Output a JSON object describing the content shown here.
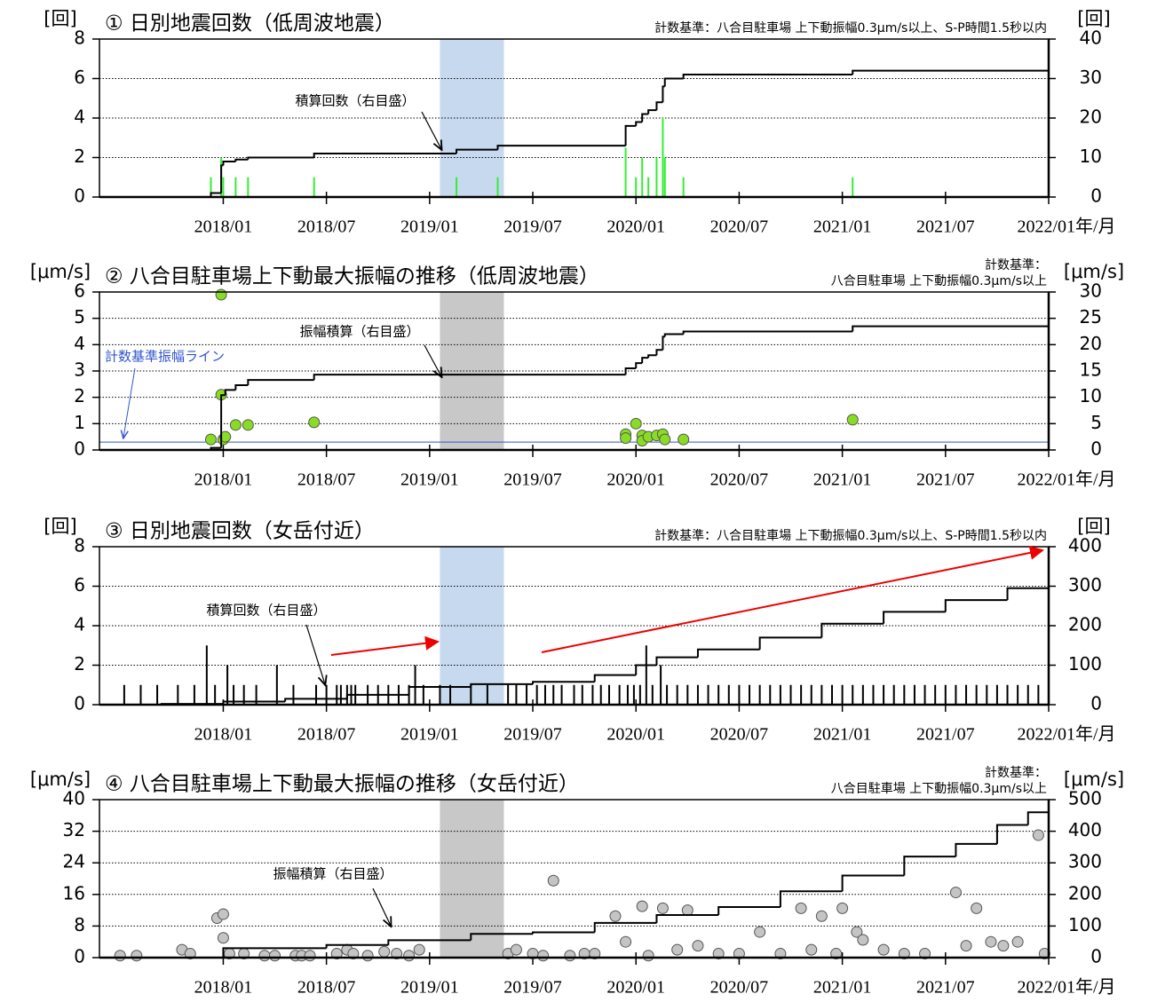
{
  "chart_data": [
    {
      "type": "bar",
      "title": "① 日別地震回数（低周波地震）",
      "note": [
        "計数基準：八合目駐車場 上下動振幅0.3μm/s以上、S-P時間1.5秒以内"
      ],
      "y_label": "[回]",
      "y2_label": "[回]",
      "x_label": "年/月",
      "xlim": [
        2017.4,
        2022.0
      ],
      "xticks": [
        {
          "value": 2018.0,
          "label": "2018/01"
        },
        {
          "value": 2018.5,
          "label": "2018/07"
        },
        {
          "value": 2019.0,
          "label": "2019/01"
        },
        {
          "value": 2019.5,
          "label": "2019/07"
        },
        {
          "value": 2020.0,
          "label": "2020/01"
        },
        {
          "value": 2020.5,
          "label": "2020/07"
        },
        {
          "value": 2021.0,
          "label": "2021/01"
        },
        {
          "value": 2021.5,
          "label": "2021/07"
        },
        {
          "value": 2022.0,
          "label": "2022/01"
        }
      ],
      "ylim": [
        0,
        8
      ],
      "yticks": [
        0,
        2,
        4,
        6,
        8
      ],
      "y2lim": [
        0,
        40
      ],
      "y2ticks": [
        0,
        10,
        20,
        30,
        40
      ],
      "grid": true,
      "shade": {
        "xlim": [
          2019.05,
          2019.36
        ],
        "color": "#c6d9ef"
      },
      "series": [
        {
          "color": "#33ee33",
          "x": [
            2017.94,
            2017.99,
            2018.0,
            2018.06,
            2018.12,
            2018.44,
            2019.13,
            2019.33,
            2019.95,
            2020.0,
            2020.03,
            2020.06,
            2020.1,
            2020.13,
            2020.14,
            2020.23,
            2021.05
          ],
          "values": [
            1,
            2,
            1,
            1,
            1,
            1,
            1,
            1,
            2.5,
            1,
            2,
            1,
            2,
            4,
            2,
            1,
            1
          ]
        },
        {
          "type": "line",
          "axis": "y2",
          "color": "#000000",
          "annotation": "積算回数（右目盛）",
          "x": [
            2017.4,
            2017.94,
            2017.99,
            2018.0,
            2018.06,
            2018.12,
            2018.44,
            2019.13,
            2019.33,
            2019.95,
            2020.0,
            2020.03,
            2020.06,
            2020.1,
            2020.13,
            2020.14,
            2020.23,
            2021.05,
            2022.0
          ],
          "values": [
            0,
            1,
            8,
            9,
            9.5,
            10,
            11,
            12,
            13,
            18,
            19,
            21,
            22,
            24,
            28,
            30,
            31,
            32,
            32
          ]
        }
      ]
    },
    {
      "type": "scatter",
      "title": "② 八合目駐車場上下動最大振幅の推移（低周波地震）",
      "note": [
        "計数基準：",
        "八合目駐車場 上下動振幅0.3μm/s以上"
      ],
      "y_label": "[μm/s]",
      "y2_label": "[μm/s]",
      "x_label": "年/月",
      "xlim": [
        2017.4,
        2022.0
      ],
      "xticks": [
        {
          "value": 2018.0,
          "label": "2018/01"
        },
        {
          "value": 2018.5,
          "label": "2018/07"
        },
        {
          "value": 2019.0,
          "label": "2019/01"
        },
        {
          "value": 2019.5,
          "label": "2019/07"
        },
        {
          "value": 2020.0,
          "label": "2020/01"
        },
        {
          "value": 2020.5,
          "label": "2020/07"
        },
        {
          "value": 2021.0,
          "label": "2021/01"
        },
        {
          "value": 2021.5,
          "label": "2021/07"
        },
        {
          "value": 2022.0,
          "label": "2022/01"
        }
      ],
      "ylim": [
        0,
        6
      ],
      "yticks": [
        0,
        1,
        2,
        3,
        4,
        5,
        6
      ],
      "y2lim": [
        0,
        30
      ],
      "y2ticks": [
        0,
        5,
        10,
        15,
        20,
        25,
        30
      ],
      "grid": true,
      "shade": {
        "xlim": [
          2019.05,
          2019.36
        ],
        "color": "#c8c8c8"
      },
      "reference_line": {
        "value": 0.3,
        "color": "#3355cc",
        "label": "計数基準振幅ライン"
      },
      "series": [
        {
          "color": "#88dd22",
          "x": [
            2017.94,
            2017.99,
            2017.99,
            2018.0,
            2018.01,
            2018.06,
            2018.12,
            2018.44,
            2019.95,
            2019.95,
            2020.0,
            2020.03,
            2020.03,
            2020.06,
            2020.1,
            2020.13,
            2020.14,
            2020.23,
            2021.05
          ],
          "values": [
            0.4,
            5.9,
            2.1,
            0.4,
            0.5,
            0.95,
            0.95,
            1.05,
            0.6,
            0.45,
            1.0,
            0.55,
            0.35,
            0.5,
            0.55,
            0.6,
            0.4,
            0.4,
            1.15
          ]
        },
        {
          "type": "line",
          "axis": "y2",
          "color": "#000000",
          "annotation": "振幅積算（右目盛）",
          "x": [
            2017.4,
            2017.94,
            2017.99,
            2018.01,
            2018.06,
            2018.12,
            2018.44,
            2019.95,
            2020.0,
            2020.03,
            2020.06,
            2020.1,
            2020.13,
            2020.14,
            2020.23,
            2021.05,
            2022.0
          ],
          "values": [
            0,
            0.4,
            10.4,
            11.4,
            12.3,
            13.3,
            14.3,
            15.5,
            16.5,
            17.5,
            18,
            19,
            21.5,
            22,
            22.5,
            23.5,
            23.5
          ]
        }
      ]
    },
    {
      "type": "bar",
      "title": "③ 日別地震回数（女岳付近）",
      "note": [
        "計数基準：八合目駐車場 上下動振幅0.3μm/s以上、S-P時間1.5秒以内"
      ],
      "y_label": "[回]",
      "y2_label": "[回]",
      "x_label": "年/月",
      "xlim": [
        2017.4,
        2022.0
      ],
      "xticks": [
        {
          "value": 2018.0,
          "label": "2018/01"
        },
        {
          "value": 2018.5,
          "label": "2018/07"
        },
        {
          "value": 2019.0,
          "label": "2019/01"
        },
        {
          "value": 2019.5,
          "label": "2019/07"
        },
        {
          "value": 2020.0,
          "label": "2020/01"
        },
        {
          "value": 2020.5,
          "label": "2020/07"
        },
        {
          "value": 2021.0,
          "label": "2021/01"
        },
        {
          "value": 2021.5,
          "label": "2021/07"
        },
        {
          "value": 2022.0,
          "label": "2022/01"
        }
      ],
      "ylim": [
        0,
        8
      ],
      "yticks": [
        0,
        2,
        4,
        6,
        8
      ],
      "y2lim": [
        0,
        400
      ],
      "y2ticks": [
        0,
        100,
        200,
        300,
        400
      ],
      "grid": true,
      "shade": {
        "xlim": [
          2019.05,
          2019.36
        ],
        "color": "#c6d9ef"
      },
      "series": [
        {
          "color": "#000000",
          "x": [
            2017.52,
            2017.6,
            2017.68,
            2017.78,
            2017.86,
            2017.92,
            2017.96,
            2018.02,
            2018.05,
            2018.1,
            2018.16,
            2018.26,
            2018.34,
            2018.45,
            2018.5,
            2018.55,
            2018.57,
            2018.6,
            2018.62,
            2018.64,
            2018.7,
            2018.75,
            2018.8,
            2018.85,
            2018.9,
            2018.93,
            2018.97,
            2019.05,
            2019.1,
            2019.2,
            2019.28,
            2019.38,
            2019.42,
            2019.47,
            2019.52,
            2019.56,
            2019.6,
            2019.64,
            2019.7,
            2019.74,
            2019.79,
            2019.83,
            2019.87,
            2019.92,
            2019.96,
            2019.99,
            2020.02,
            2020.05,
            2020.08,
            2020.12,
            2020.15,
            2020.2,
            2020.25,
            2020.3,
            2020.35,
            2020.4,
            2020.45,
            2020.5,
            2020.55,
            2020.6,
            2020.65,
            2020.7,
            2020.75,
            2020.8,
            2020.85,
            2020.9,
            2020.95,
            2021.0,
            2021.05,
            2021.1,
            2021.15,
            2021.2,
            2021.25,
            2021.3,
            2021.35,
            2021.4,
            2021.45,
            2021.5,
            2021.55,
            2021.6,
            2021.65,
            2021.7,
            2021.75,
            2021.8,
            2021.85,
            2021.9,
            2021.95
          ],
          "values": [
            1,
            1,
            1,
            1,
            1,
            3,
            1,
            2,
            1,
            1,
            1,
            2,
            1,
            1,
            1,
            1,
            1,
            1,
            1,
            1,
            1,
            1,
            1,
            1,
            1,
            2,
            1,
            1,
            1,
            1,
            1,
            1,
            1,
            1,
            1,
            1,
            1,
            1,
            1,
            1,
            1,
            1,
            1,
            1,
            1,
            1,
            1,
            3,
            1,
            2,
            1,
            1,
            1,
            1,
            1,
            1,
            1,
            1,
            1,
            1,
            1,
            1,
            1,
            1,
            1,
            1,
            1,
            1,
            1,
            1,
            1,
            1,
            1,
            1,
            1,
            1,
            1,
            1,
            1,
            1,
            1,
            1,
            1,
            1,
            1,
            1,
            1
          ]
        },
        {
          "type": "line",
          "axis": "y2",
          "color": "#000000",
          "annotation": "積算回数（右目盛）",
          "x": [
            2017.4,
            2017.7,
            2018.0,
            2018.3,
            2018.6,
            2018.9,
            2019.2,
            2019.5,
            2019.8,
            2020.0,
            2020.1,
            2020.3,
            2020.6,
            2020.9,
            2021.2,
            2021.5,
            2021.8,
            2022.0
          ],
          "values": [
            0,
            2,
            8,
            15,
            25,
            45,
            52,
            58,
            75,
            100,
            120,
            140,
            170,
            205,
            235,
            265,
            295,
            312
          ]
        }
      ]
    },
    {
      "type": "scatter",
      "title": "④ 八合目駐車場上下動最大振幅の推移（女岳付近）",
      "note": [
        "計数基準：",
        "八合目駐車場 上下動振幅0.3μm/s以上"
      ],
      "y_label": "[μm/s]",
      "y2_label": "[μm/s]",
      "x_label": "年/月",
      "xlim": [
        2017.4,
        2022.0
      ],
      "xticks": [
        {
          "value": 2018.0,
          "label": "2018/01"
        },
        {
          "value": 2018.5,
          "label": "2018/07"
        },
        {
          "value": 2019.0,
          "label": "2019/01"
        },
        {
          "value": 2019.5,
          "label": "2019/07"
        },
        {
          "value": 2020.0,
          "label": "2020/01"
        },
        {
          "value": 2020.5,
          "label": "2020/07"
        },
        {
          "value": 2021.0,
          "label": "2021/01"
        },
        {
          "value": 2021.5,
          "label": "2021/07"
        },
        {
          "value": 2022.0,
          "label": "2022/01"
        }
      ],
      "ylim": [
        0,
        40
      ],
      "yticks": [
        0,
        8,
        16,
        24,
        32,
        40
      ],
      "y2lim": [
        0,
        500
      ],
      "y2ticks": [
        0,
        100,
        200,
        300,
        400,
        500
      ],
      "grid": true,
      "shade": {
        "xlim": [
          2019.05,
          2019.36
        ],
        "color": "#c8c8c8"
      },
      "series": [
        {
          "color": "#c4c4c4",
          "x": [
            2017.5,
            2017.58,
            2017.8,
            2017.84,
            2017.97,
            2018.0,
            2018.0,
            2018.03,
            2018.1,
            2018.2,
            2018.25,
            2018.35,
            2018.38,
            2018.42,
            2018.55,
            2018.6,
            2018.63,
            2018.7,
            2018.78,
            2018.84,
            2018.9,
            2018.95,
            2019.38,
            2019.42,
            2019.5,
            2019.55,
            2019.6,
            2019.68,
            2019.75,
            2019.8,
            2019.9,
            2019.95,
            2020.03,
            2020.06,
            2020.13,
            2020.2,
            2020.25,
            2020.3,
            2020.4,
            2020.5,
            2020.6,
            2020.7,
            2020.8,
            2020.85,
            2020.9,
            2020.97,
            2021.0,
            2021.07,
            2021.1,
            2021.2,
            2021.3,
            2021.4,
            2021.55,
            2021.6,
            2021.65,
            2021.72,
            2021.78,
            2021.85,
            2021.95,
            2021.98
          ],
          "values": [
            0.5,
            0.5,
            2,
            1,
            10,
            11,
            5,
            1,
            1,
            0.5,
            0.5,
            0.5,
            0.5,
            0.5,
            1,
            2,
            1,
            0.5,
            1.5,
            1,
            0.5,
            2,
            1,
            2,
            1,
            0.5,
            19.5,
            0.5,
            1,
            1,
            10.5,
            4,
            13,
            0.5,
            12.5,
            2,
            12,
            3,
            1,
            1,
            6.5,
            1,
            12.5,
            2,
            10.5,
            1,
            12.5,
            6.5,
            4.5,
            2,
            1,
            1,
            16.5,
            3,
            12.5,
            4,
            3,
            4,
            31,
            1
          ]
        },
        {
          "type": "line",
          "axis": "y2",
          "color": "#000000",
          "annotation": "振幅積算（右目盛）",
          "x": [
            2017.4,
            2017.95,
            2018.0,
            2018.5,
            2018.8,
            2019.2,
            2019.5,
            2019.8,
            2020.1,
            2020.4,
            2020.7,
            2021.0,
            2021.3,
            2021.55,
            2021.75,
            2021.9,
            2022.0
          ],
          "values": [
            0,
            0,
            30,
            40,
            55,
            75,
            80,
            110,
            135,
            160,
            210,
            260,
            320,
            360,
            420,
            460,
            475
          ]
        }
      ]
    }
  ]
}
